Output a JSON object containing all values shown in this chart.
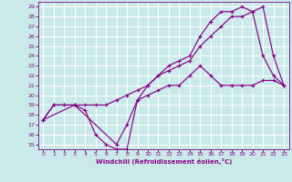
{
  "xlabel": "Windchill (Refroidissement éolien,°C)",
  "bg_color": "#caeaea",
  "grid_color": "#ffffff",
  "line_color": "#880088",
  "xlim": [
    -0.5,
    23.5
  ],
  "ylim": [
    14.5,
    29.5
  ],
  "xticks": [
    0,
    1,
    2,
    3,
    4,
    5,
    6,
    7,
    8,
    9,
    10,
    11,
    12,
    13,
    14,
    15,
    16,
    17,
    18,
    19,
    20,
    21,
    22,
    23
  ],
  "yticks": [
    15,
    16,
    17,
    18,
    19,
    20,
    21,
    22,
    23,
    24,
    25,
    26,
    27,
    28,
    29
  ],
  "line1_x": [
    0,
    1,
    2,
    3,
    4,
    5,
    6,
    7,
    8,
    9,
    10,
    11,
    12,
    13,
    14,
    15,
    16,
    17,
    18,
    19,
    20,
    21,
    22,
    23
  ],
  "line1_y": [
    17.5,
    19,
    19,
    19,
    18.5,
    16,
    15,
    14.5,
    14.5,
    19.5,
    20,
    20.5,
    21,
    21,
    22,
    23,
    22,
    21,
    21,
    21,
    21,
    21.5,
    21.5,
    21
  ],
  "line2_x": [
    0,
    1,
    2,
    3,
    4,
    5,
    6,
    7,
    8,
    9,
    10,
    11,
    12,
    13,
    14,
    15,
    16,
    17,
    18,
    19,
    20,
    21,
    22,
    23
  ],
  "line2_y": [
    17.5,
    19,
    19,
    19,
    19,
    19,
    19,
    19.5,
    20,
    20.5,
    21,
    22,
    22.5,
    23,
    23.5,
    25,
    26,
    27,
    28,
    28,
    28.5,
    24,
    22,
    21
  ],
  "line3_x": [
    0,
    3,
    7,
    8,
    9,
    10,
    11,
    12,
    13,
    14,
    15,
    16,
    17,
    18,
    19,
    20,
    21,
    22,
    23
  ],
  "line3_y": [
    17.5,
    19,
    15,
    17,
    19.5,
    21,
    22,
    23,
    23.5,
    24,
    26,
    27.5,
    28.5,
    28.5,
    29,
    28.5,
    29,
    24,
    21
  ]
}
